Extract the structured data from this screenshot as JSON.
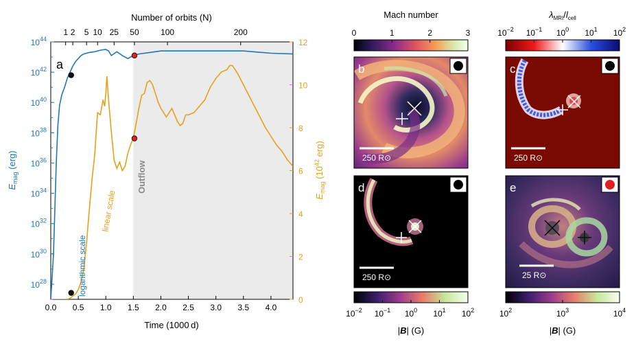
{
  "chart_data": {
    "type": "line",
    "panel_a": {
      "label": "a",
      "xlabel": "Time (1000 d)",
      "xlim": [
        0,
        4.4
      ],
      "x_ticks": [
        0.0,
        0.5,
        1.0,
        1.5,
        2.0,
        2.5,
        3.0,
        3.5,
        4.0
      ],
      "x_tick_labels": [
        "0.0",
        "0.5",
        "1.0",
        "1.5",
        "2.0",
        "2.5",
        "3.0",
        "3.5",
        "4.0"
      ],
      "top_xlabel": "Number of orbits (N)",
      "top_ticks": [
        {
          "x": 0.27,
          "label": "1"
        },
        {
          "x": 0.4,
          "label": "2"
        },
        {
          "x": 0.65,
          "label": "5"
        },
        {
          "x": 0.85,
          "label": "10"
        },
        {
          "x": 1.15,
          "label": "25"
        },
        {
          "x": 1.52,
          "label": "50"
        },
        {
          "x": 2.12,
          "label": "100"
        },
        {
          "x": 3.45,
          "label": "200"
        }
      ],
      "left_ylabel": "E_mag (erg)",
      "left_ylim_log10": [
        27,
        44
      ],
      "left_ticks": [
        {
          "v": 28,
          "base": "10",
          "exp": "28"
        },
        {
          "v": 30,
          "base": "10",
          "exp": "30"
        },
        {
          "v": 32,
          "base": "10",
          "exp": "32"
        },
        {
          "v": 34,
          "base": "10",
          "exp": "34"
        },
        {
          "v": 36,
          "base": "10",
          "exp": "36"
        },
        {
          "v": 38,
          "base": "10",
          "exp": "38"
        },
        {
          "v": 40,
          "base": "10",
          "exp": "40"
        },
        {
          "v": 42,
          "base": "10",
          "exp": "42"
        },
        {
          "v": 44,
          "base": "10",
          "exp": "44"
        }
      ],
      "right_ylabel": "E_mag (10^42 erg)",
      "right_ylim": [
        0,
        12
      ],
      "right_ticks": [
        0,
        2,
        4,
        6,
        8,
        10,
        12
      ],
      "right_tick_labels": [
        "0",
        "2",
        "4",
        "6",
        "8",
        "10",
        "12"
      ],
      "outflow_start": 1.5,
      "outflow_label": "Outflow",
      "series": [
        {
          "name": "logarithmic scale",
          "color": "#1f77b4",
          "axis": "left_log10",
          "x": [
            0.0,
            0.05,
            0.1,
            0.13,
            0.16,
            0.2,
            0.25,
            0.3,
            0.35,
            0.4,
            0.45,
            0.5,
            0.55,
            0.6,
            0.65,
            0.7,
            0.8,
            0.9,
            1.0,
            1.05,
            1.1,
            1.2,
            1.3,
            1.4,
            1.5,
            1.6,
            1.8,
            2.0,
            2.5,
            3.0,
            3.5,
            4.0,
            4.4
          ],
          "y": [
            27.0,
            30.0,
            36.0,
            38.5,
            39.8,
            40.5,
            41.0,
            41.6,
            42.0,
            42.4,
            42.7,
            42.9,
            43.1,
            43.2,
            43.25,
            43.3,
            43.35,
            43.45,
            43.5,
            43.4,
            43.1,
            43.35,
            43.1,
            42.9,
            43.1,
            43.2,
            43.3,
            43.4,
            43.4,
            43.4,
            43.4,
            43.25,
            43.2
          ]
        },
        {
          "name": "linear scale",
          "color": "#e5a11a",
          "axis": "right_linear",
          "x": [
            0.0,
            0.3,
            0.35,
            0.4,
            0.45,
            0.5,
            0.55,
            0.6,
            0.65,
            0.7,
            0.75,
            0.8,
            0.82,
            0.85,
            0.9,
            0.95,
            0.98,
            1.0,
            1.02,
            1.05,
            1.1,
            1.15,
            1.2,
            1.25,
            1.3,
            1.35,
            1.4,
            1.45,
            1.5,
            1.55,
            1.6,
            1.65,
            1.7,
            1.75,
            1.8,
            1.85,
            1.9,
            1.95,
            2.0,
            2.1,
            2.2,
            2.3,
            2.35,
            2.4,
            2.45,
            2.5,
            2.6,
            2.7,
            2.8,
            2.9,
            3.0,
            3.1,
            3.2,
            3.25,
            3.3,
            3.35,
            3.4,
            3.5,
            3.6,
            3.7,
            3.8,
            3.9,
            4.0,
            4.1,
            4.2,
            4.3,
            4.4
          ],
          "y": [
            0.0,
            0.0,
            0.05,
            0.15,
            0.25,
            0.45,
            0.8,
            1.4,
            2.6,
            4.2,
            5.6,
            6.8,
            7.6,
            8.7,
            8.6,
            9.3,
            9.0,
            9.6,
            10.4,
            9.3,
            7.8,
            6.5,
            6.1,
            6.4,
            6.0,
            6.2,
            6.8,
            7.2,
            7.5,
            8.2,
            8.9,
            9.5,
            9.6,
            10.1,
            10.2,
            10.0,
            9.6,
            9.2,
            8.9,
            8.5,
            8.9,
            8.3,
            8.1,
            8.2,
            8.6,
            8.6,
            8.7,
            9.0,
            9.3,
            9.9,
            10.3,
            10.6,
            10.7,
            10.9,
            10.9,
            10.7,
            10.5,
            10.0,
            9.5,
            9.0,
            8.5,
            8.0,
            7.6,
            7.2,
            6.9,
            6.5,
            6.2
          ]
        }
      ],
      "markers": [
        {
          "series": "logarithmic scale",
          "x": 0.37,
          "y": 41.8,
          "color": "#111111"
        },
        {
          "series": "linear scale",
          "x": 0.37,
          "y": 0.3,
          "color": "#111111"
        },
        {
          "series": "logarithmic scale",
          "x": 1.52,
          "y": 43.1,
          "color": "#e02020"
        },
        {
          "series": "linear scale",
          "x": 1.52,
          "y": 7.5,
          "color": "#e02020"
        }
      ]
    },
    "colorbars": {
      "mach": {
        "label": "Mach number",
        "ticks": [
          "0",
          "1",
          "2",
          "3"
        ]
      },
      "lambda": {
        "label": "λ_MRI / l_cell",
        "ticks": [
          {
            "base": "10",
            "exp": "−2"
          },
          {
            "base": "10",
            "exp": "−1"
          },
          {
            "base": "10",
            "exp": "0"
          },
          {
            "base": "10",
            "exp": "1"
          },
          {
            "base": "10",
            "exp": "2"
          }
        ]
      },
      "bfield_small": {
        "label": "|B| (G)",
        "ticks": [
          {
            "base": "10",
            "exp": "−2"
          },
          {
            "base": "10",
            "exp": "−1"
          },
          {
            "base": "10",
            "exp": "0"
          },
          {
            "base": "10",
            "exp": "1"
          },
          {
            "base": "10",
            "exp": "2"
          }
        ]
      },
      "bfield_large": {
        "label": "|B| (G)",
        "ticks": [
          {
            "base": "10",
            "exp": "2"
          },
          {
            "base": "10",
            "exp": "3"
          },
          {
            "base": "10",
            "exp": "4"
          }
        ]
      }
    },
    "panels": [
      {
        "id": "b",
        "label": "b",
        "scale": "250 R⊙",
        "dot": "#000000"
      },
      {
        "id": "c",
        "label": "c",
        "scale": "250 R⊙",
        "dot": "#000000"
      },
      {
        "id": "d",
        "label": "d",
        "scale": "250 R⊙",
        "dot": "#000000"
      },
      {
        "id": "e",
        "label": "e",
        "scale": "25 R⊙",
        "dot": "#e02020"
      }
    ]
  }
}
